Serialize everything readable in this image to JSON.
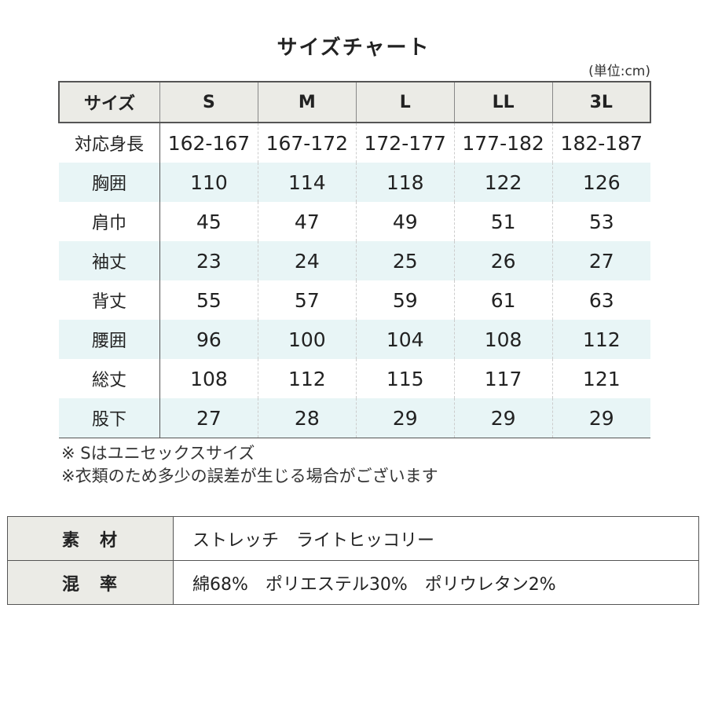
{
  "title": "サイズチャート",
  "unit": "(単位:cm)",
  "size_table": {
    "headers": [
      "サイズ",
      "S",
      "M",
      "L",
      "LL",
      "3L"
    ],
    "rows": [
      {
        "label": "対応身長",
        "values": [
          "162-167",
          "167-172",
          "172-177",
          "177-182",
          "182-187"
        ]
      },
      {
        "label": "胸囲",
        "values": [
          "110",
          "114",
          "118",
          "122",
          "126"
        ]
      },
      {
        "label": "肩巾",
        "values": [
          "45",
          "47",
          "49",
          "51",
          "53"
        ]
      },
      {
        "label": "袖丈",
        "values": [
          "23",
          "24",
          "25",
          "26",
          "27"
        ]
      },
      {
        "label": "背丈",
        "values": [
          "55",
          "57",
          "59",
          "61",
          "63"
        ]
      },
      {
        "label": "腰囲",
        "values": [
          "96",
          "100",
          "104",
          "108",
          "112"
        ]
      },
      {
        "label": "総丈",
        "values": [
          "108",
          "112",
          "115",
          "117",
          "121"
        ]
      },
      {
        "label": "股下",
        "values": [
          "27",
          "28",
          "29",
          "29",
          "29"
        ]
      }
    ]
  },
  "notes": [
    "※ Sはユニセックスサイズ",
    "※衣類のため多少の誤差が生じる場合がございます"
  ],
  "material_table": [
    {
      "label": "素　材",
      "value": "ストレッチ　ライトヒッコリー"
    },
    {
      "label": "混　率",
      "value": "綿68%　ポリエステル30%　ポリウレタン2%"
    }
  ],
  "colors": {
    "header_bg": "#ebebe6",
    "alt_row_bg": "#e8f5f6"
  }
}
